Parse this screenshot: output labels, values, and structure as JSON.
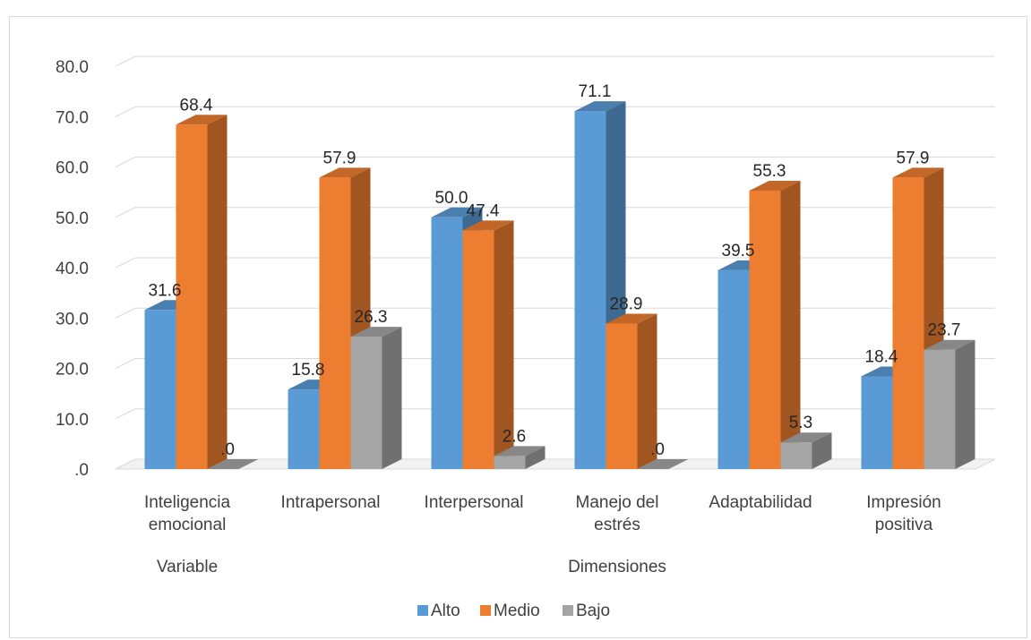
{
  "chart_data": {
    "type": "bar",
    "style": "3d-clustered-column",
    "categories": [
      [
        "Inteligencia",
        "emocional"
      ],
      [
        "Intrapersonal"
      ],
      [
        "Interpersonal"
      ],
      [
        "Manejo del",
        "estrés"
      ],
      [
        "Adaptabilidad"
      ],
      [
        "Impresión",
        "positiva"
      ]
    ],
    "category_groups": [
      {
        "label": "Variable",
        "categories": [
          0
        ]
      },
      {
        "label": "Dimensiones",
        "categories": [
          1,
          2,
          3,
          4,
          5
        ]
      }
    ],
    "series": [
      {
        "name": "Alto",
        "color": "#5b9bd5",
        "values": [
          31.6,
          15.8,
          50.0,
          71.1,
          39.5,
          18.4
        ],
        "labels": [
          "31.6",
          "15.8",
          "50.0",
          "71.1",
          "39.5",
          "18.4"
        ]
      },
      {
        "name": "Medio",
        "color": "#ed7d31",
        "values": [
          68.4,
          57.9,
          47.4,
          28.9,
          55.3,
          57.9
        ],
        "labels": [
          "68.4",
          "57.9",
          "47.4",
          "28.9",
          "55.3",
          "57.9"
        ]
      },
      {
        "name": "Bajo",
        "color": "#a5a5a5",
        "values": [
          0.0,
          26.3,
          2.6,
          0.0,
          5.3,
          23.7
        ],
        "labels": [
          ".0",
          "26.3",
          "2.6",
          ".0",
          "5.3",
          "23.7"
        ]
      }
    ],
    "y_ticks": [
      0,
      10,
      20,
      30,
      40,
      50,
      60,
      70,
      80
    ],
    "y_tick_labels": [
      ".0",
      "10.0",
      "20.0",
      "30.0",
      "40.0",
      "50.0",
      "60.0",
      "70.0",
      "80.0"
    ],
    "ylim": [
      0,
      80
    ],
    "grid": true,
    "legend_position": "bottom",
    "title": "",
    "xlabel": "",
    "ylabel": ""
  }
}
